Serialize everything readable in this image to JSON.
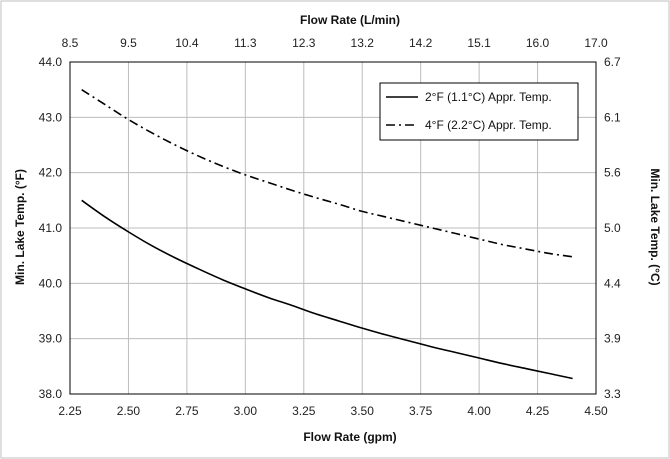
{
  "chart_data": {
    "type": "line",
    "xlabel": "Flow Rate (gpm)",
    "x2label": "Flow Rate (L/min)",
    "ylabel": "Min. Lake Temp. (°F)",
    "y2label": "Min. Lake Temp. (°C)",
    "xlim": [
      2.25,
      4.5
    ],
    "ylim": [
      38.0,
      44.0
    ],
    "x_ticks": [
      "2.25",
      "2.50",
      "2.75",
      "3.00",
      "3.25",
      "3.50",
      "3.75",
      "4.00",
      "4.25",
      "4.50"
    ],
    "x2_ticks": [
      "8.5",
      "9.5",
      "10.4",
      "11.3",
      "12.3",
      "13.2",
      "14.2",
      "15.1",
      "16.0",
      "17.0"
    ],
    "y_ticks": [
      "38.0",
      "39.0",
      "40.0",
      "41.0",
      "42.0",
      "43.0",
      "44.0"
    ],
    "y2_ticks": [
      "3.3",
      "3.9",
      "4.4",
      "5.0",
      "5.6",
      "6.1",
      "6.7"
    ],
    "grid": true,
    "legend_position": "top-right",
    "series": [
      {
        "name": "2°F (1.1°C) Appr. Temp.",
        "style": "solid",
        "x": [
          2.3,
          2.4,
          2.5,
          2.6,
          2.7,
          2.8,
          2.9,
          3.0,
          3.1,
          3.2,
          3.3,
          3.4,
          3.5,
          3.6,
          3.7,
          3.8,
          3.9,
          4.0,
          4.1,
          4.2,
          4.3,
          4.4
        ],
        "values": [
          41.5,
          41.2,
          40.93,
          40.68,
          40.46,
          40.26,
          40.07,
          39.9,
          39.74,
          39.6,
          39.45,
          39.32,
          39.19,
          39.07,
          38.96,
          38.85,
          38.75,
          38.65,
          38.55,
          38.46,
          38.37,
          38.28
        ]
      },
      {
        "name": "4°F (2.2°C) Appr. Temp.",
        "style": "dash-dot",
        "x": [
          2.3,
          2.4,
          2.5,
          2.6,
          2.7,
          2.8,
          2.9,
          3.0,
          3.1,
          3.2,
          3.3,
          3.4,
          3.5,
          3.6,
          3.7,
          3.8,
          3.9,
          4.0,
          4.1,
          4.2,
          4.3,
          4.4
        ],
        "values": [
          43.5,
          43.23,
          42.96,
          42.72,
          42.5,
          42.3,
          42.12,
          41.96,
          41.82,
          41.68,
          41.55,
          41.43,
          41.3,
          41.2,
          41.1,
          41.0,
          40.9,
          40.8,
          40.7,
          40.62,
          40.54,
          40.48
        ]
      }
    ]
  }
}
